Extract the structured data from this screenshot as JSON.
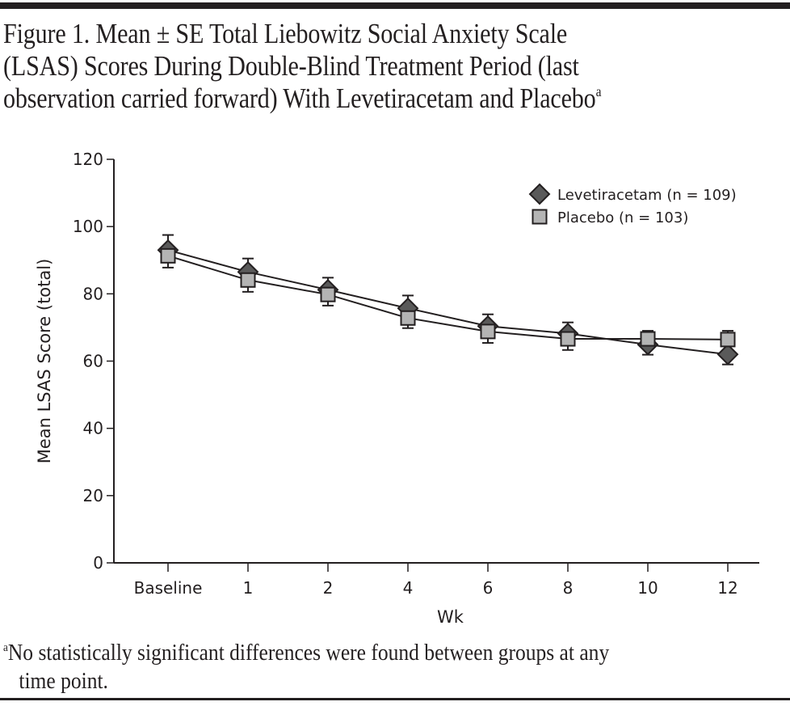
{
  "figure": {
    "title": "Figure 1. Mean ± SE Total Liebowitz Social Anxiety Scale (LSAS) Scores During Double-Blind Treatment Period (last observation carried forward) With Levetiracetam and Placebo",
    "title_lines": [
      "Figure 1. Mean ± SE Total Liebowitz Social Anxiety Scale",
      "(LSAS) Scores During Double-Blind Treatment Period (last",
      "observation carried forward) With Levetiracetam and Placebo"
    ],
    "title_superscript": "a",
    "footnote_marker": "a",
    "footnote_line1": "No statistically significant differences were found between groups at any",
    "footnote_line2": "time point."
  },
  "chart_data": {
    "type": "line",
    "title": "Mean ± SE Total LSAS Scores During Double-Blind Treatment Period (LOCF)",
    "xlabel": "Wk",
    "ylabel": "Mean LSAS Score (total)",
    "categories": [
      "Baseline",
      "1",
      "2",
      "4",
      "6",
      "8",
      "10",
      "12"
    ],
    "ylim": [
      0,
      120
    ],
    "yticks": [
      0,
      20,
      40,
      60,
      80,
      100,
      120
    ],
    "ytick_labels": [
      "0",
      "20",
      "40",
      "60",
      "80",
      "100",
      "120"
    ],
    "grid": false,
    "legend_position": "top-right",
    "series": [
      {
        "name": "Levetiracetam (n = 109)",
        "marker": "diamond",
        "color": "#5a5a5a",
        "values": [
          93.0,
          86.5,
          81.2,
          75.7,
          70.4,
          68.2,
          64.9,
          62.0
        ],
        "se": [
          4.5,
          4.0,
          3.6,
          3.8,
          3.5,
          3.3,
          3.0,
          3.0
        ]
      },
      {
        "name": "Placebo (n = 103)",
        "marker": "square",
        "color": "#b4b4b4",
        "values": [
          91.3,
          84.1,
          79.8,
          72.8,
          68.8,
          66.6,
          66.6,
          66.4
        ],
        "se": [
          3.5,
          3.5,
          3.3,
          3.0,
          3.4,
          3.3,
          2.4,
          2.6
        ]
      }
    ]
  }
}
